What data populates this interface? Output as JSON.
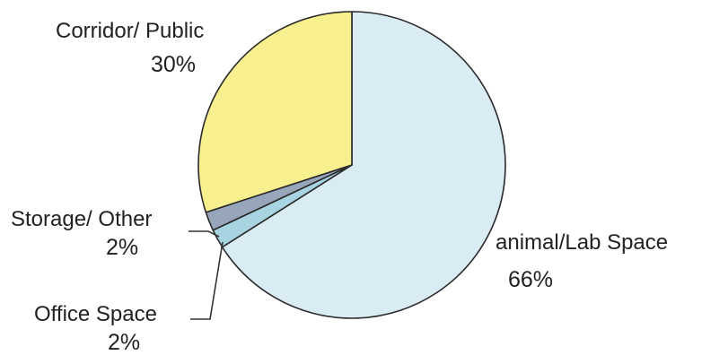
{
  "chart_data": {
    "type": "pie",
    "slices": [
      {
        "label": "animal/Lab Space",
        "value": 66,
        "value_label": "66%",
        "color": "#d9ecf3"
      },
      {
        "label": "Office Space",
        "value": 2,
        "value_label": "2%",
        "color": "#a8d4e2"
      },
      {
        "label": "Storage/ Other",
        "value": 2,
        "value_label": "2%",
        "color": "#98a6bc"
      },
      {
        "label": "Corridor/ Public",
        "value": 30,
        "value_label": "30%",
        "color": "#f8f08e"
      }
    ],
    "legend": "none",
    "labels": "outside with leader lines"
  }
}
